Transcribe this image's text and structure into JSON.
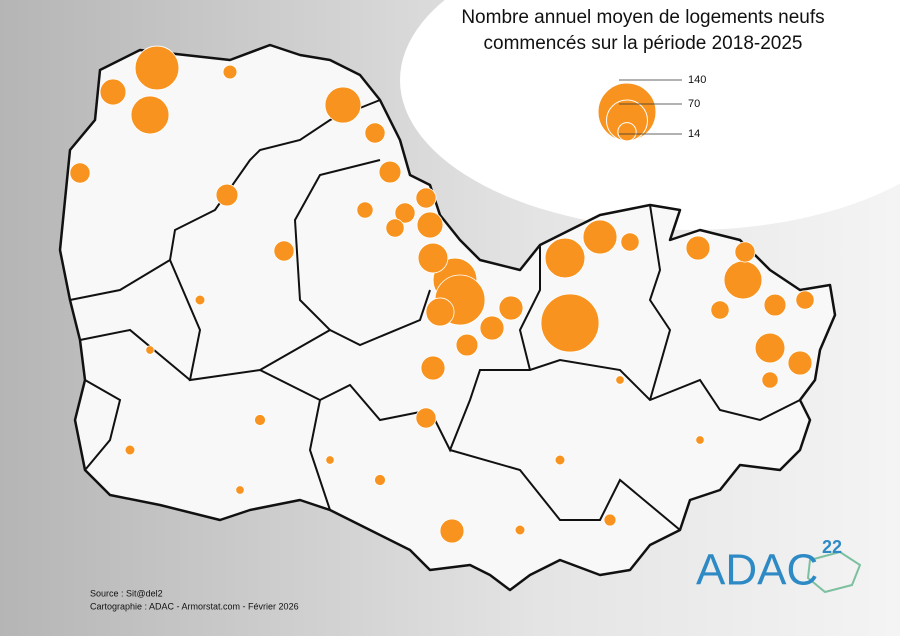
{
  "map": {
    "title": [
      "Nombre annuel moyen de logements neufs",
      "commencés sur la période 2018-2025"
    ],
    "legend": {
      "values": [
        140,
        70,
        14
      ],
      "color": "#f7931e"
    },
    "bubbles": [
      80,
      60,
      28,
      54,
      17,
      20,
      20,
      17,
      66,
      140,
      48,
      14,
      24,
      60,
      17,
      80,
      104,
      37,
      28,
      17,
      33,
      24,
      24,
      20,
      24,
      17,
      14,
      17,
      37,
      24,
      20,
      24,
      11,
      14,
      14,
      17,
      11,
      8,
      4,
      3,
      5,
      3,
      4,
      6,
      3,
      4,
      5,
      3,
      4,
      3
    ],
    "source": "Source : Sit@del2",
    "credits": "Cartographie : ADAC - Armorstat.com - Février 2026",
    "logo": {
      "text": "ADAC",
      "number": "22"
    }
  }
}
